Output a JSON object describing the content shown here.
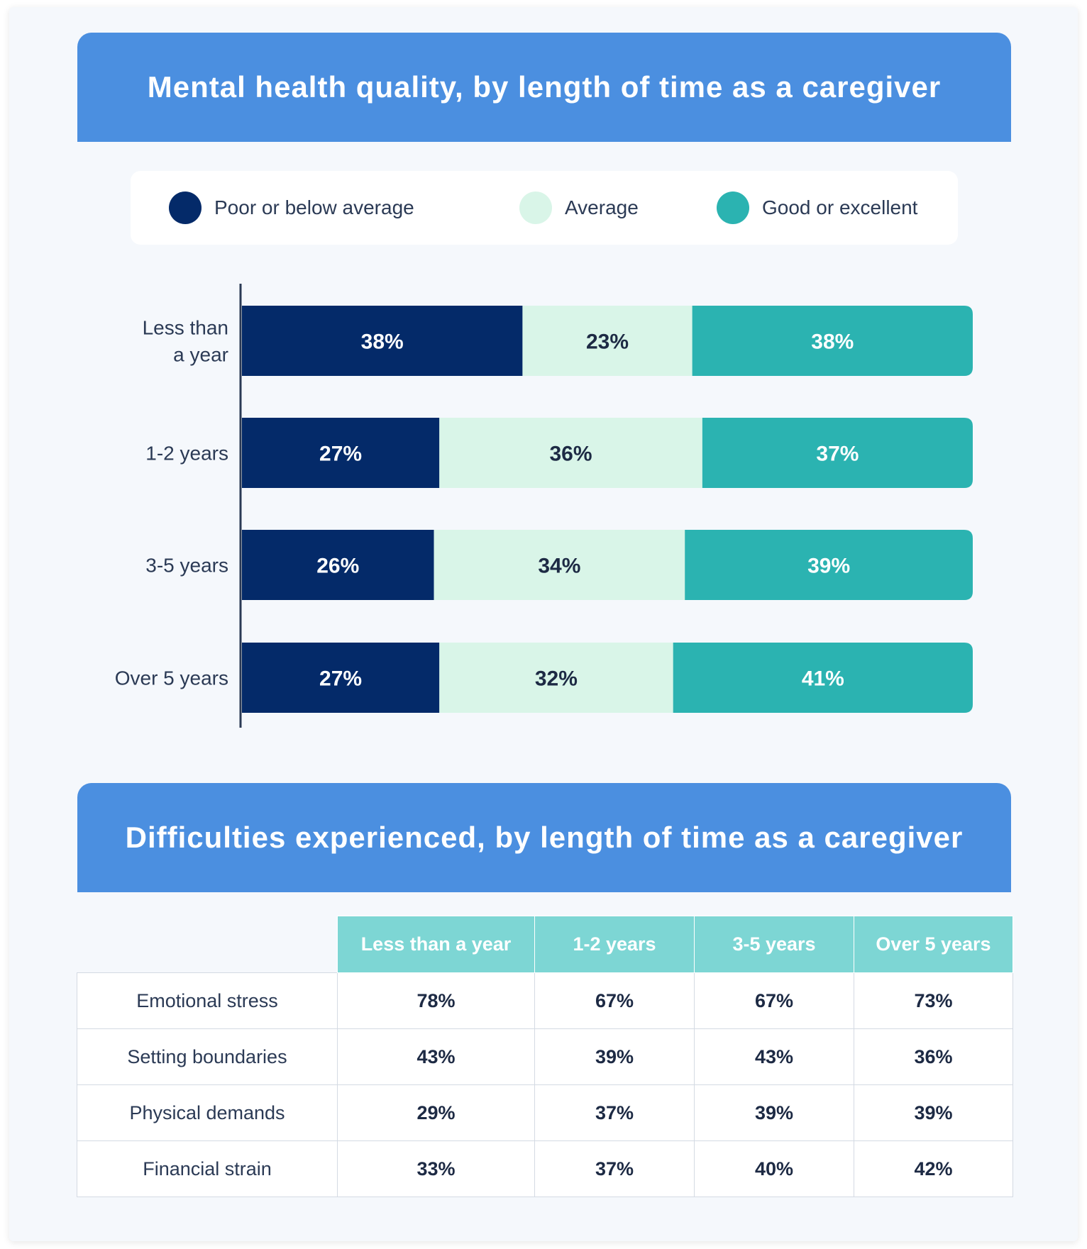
{
  "chart_data": [
    {
      "type": "bar",
      "orientation": "horizontal",
      "stacked": true,
      "title": "Mental health quality, by length of time as a caregiver",
      "categories": [
        "Less than a year",
        "1-2 years",
        "3-5 years",
        "Over 5 years"
      ],
      "category_labels": [
        [
          "Less than",
          "a year"
        ],
        [
          "1-2 years"
        ],
        [
          "3-5 years"
        ],
        [
          "Over 5 years"
        ]
      ],
      "series": [
        {
          "name": "Poor or below average",
          "color": "#042a69",
          "label_color": "#ffffff",
          "values": [
            38,
            27,
            26,
            27
          ],
          "labels": [
            "38%",
            "27%",
            "26%",
            "27%"
          ]
        },
        {
          "name": "Average",
          "color": "#d9f5e8",
          "label_color": "#1d2a44",
          "values": [
            23,
            36,
            34,
            32
          ],
          "labels": [
            "23%",
            "36%",
            "34%",
            "32%"
          ]
        },
        {
          "name": "Good or excellent",
          "color": "#2bb3b1",
          "label_color": "#ffffff",
          "values": [
            38,
            37,
            39,
            41
          ],
          "labels": [
            "38%",
            "37%",
            "39%",
            "41%"
          ]
        }
      ],
      "legend_position": "top",
      "grid": false
    },
    {
      "type": "table",
      "title": "Difficulties experienced, by length of time as a caregiver",
      "columns": [
        "Less than a year",
        "1-2 years",
        "3-5 years",
        "Over 5 years"
      ],
      "rows": [
        {
          "label": "Emotional stress",
          "values": [
            "78%",
            "67%",
            "67%",
            "73%"
          ]
        },
        {
          "label": "Setting boundaries",
          "values": [
            "43%",
            "39%",
            "43%",
            "36%"
          ]
        },
        {
          "label": "Physical demands",
          "values": [
            "29%",
            "37%",
            "39%",
            "39%"
          ]
        },
        {
          "label": "Financial strain",
          "values": [
            "33%",
            "37%",
            "40%",
            "42%"
          ]
        }
      ]
    }
  ]
}
